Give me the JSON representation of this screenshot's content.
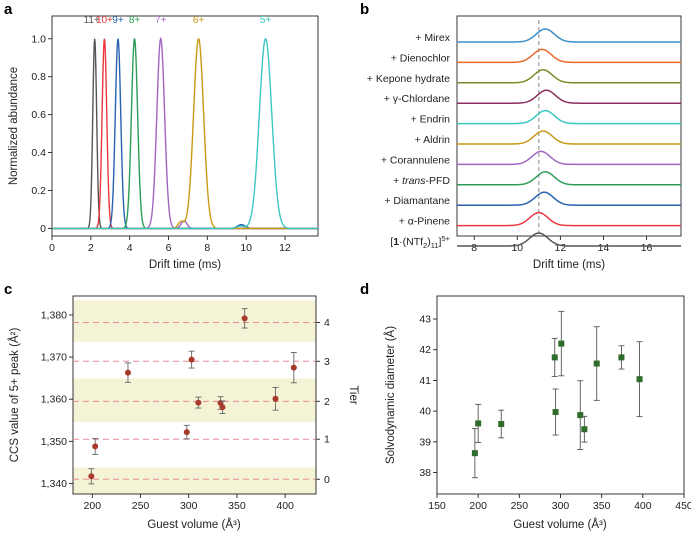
{
  "panel_letters": [
    "a",
    "b",
    "c",
    "d"
  ],
  "chart_data": [
    {
      "panel": "a",
      "type": "line",
      "xlabel": "Drift time (ms)",
      "ylabel": "Normalized abundance",
      "xlim": [
        0,
        13.7
      ],
      "ylim": [
        -0.04,
        1.12
      ],
      "xticks": [
        "0",
        "2",
        "4",
        "6",
        "8",
        "10",
        "12"
      ],
      "yticks": [
        "0",
        "0.2",
        "0.4",
        "0.6",
        "0.8",
        "1.0"
      ],
      "series": [
        {
          "name": "11+",
          "color": "#555555",
          "peak": 2.2,
          "width": 0.1,
          "height": 1.0
        },
        {
          "name": "10+",
          "color": "#e8383d",
          "peak": 2.7,
          "width": 0.12,
          "height": 1.0
        },
        {
          "name": "9+",
          "color": "#2a62b0",
          "peak": 3.4,
          "width": 0.14,
          "height": 1.0
        },
        {
          "name": "8+",
          "color": "#2e9c57",
          "peak": 4.25,
          "width": 0.16,
          "height": 1.0
        },
        {
          "name": "7+",
          "color": "#a066c0",
          "peak": 5.6,
          "width": 0.2,
          "height": 1.0
        },
        {
          "name": "6+",
          "color": "#c89a16",
          "peak": 7.55,
          "width": 0.26,
          "height": 1.0
        },
        {
          "name": "5+",
          "color": "#3cc6c0",
          "peak": 11.0,
          "width": 0.32,
          "height": 1.0
        }
      ],
      "minor_bumps": [
        {
          "color": "#a066c0",
          "peak": 6.8,
          "width": 0.15,
          "height": 0.04
        },
        {
          "color": "#c89a16",
          "peak": 6.65,
          "width": 0.15,
          "height": 0.035
        },
        {
          "color": "#2a62b0",
          "peak": 9.75,
          "width": 0.2,
          "height": 0.02
        },
        {
          "color": "#3cc6c0",
          "peak": 9.7,
          "width": 0.2,
          "height": 0.012
        }
      ]
    },
    {
      "panel": "b",
      "type": "line",
      "xlabel": "Drift time (ms)",
      "xlim": [
        7.2,
        17.6
      ],
      "xticks": [
        "8",
        "10",
        "12",
        "14",
        "16"
      ],
      "reference_line_x": 11.0,
      "series": [
        {
          "name": "+ Mirex",
          "color": "#3a8fc8",
          "peak": 11.3
        },
        {
          "name": "+ Dienochlor",
          "color": "#e8692a",
          "peak": 11.15
        },
        {
          "name": "+ Kepone hydrate",
          "color": "#7f8a2a",
          "peak": 11.2
        },
        {
          "name": "+ γ-Chlordane",
          "color": "#8b2f5e",
          "peak": 11.35
        },
        {
          "name": "+ Endrin",
          "color": "#3cc6c0",
          "peak": 11.3
        },
        {
          "name": "+ Aldrin",
          "color": "#c89a16",
          "peak": 11.2
        },
        {
          "name": "+ Corannulene",
          "color": "#a066c0",
          "peak": 11.1
        },
        {
          "name_prefix": "+ ",
          "name_italic": "trans",
          "name_suffix": "-PFD",
          "color": "#2e9c57",
          "peak": 11.3
        },
        {
          "name": "+ Diamantane",
          "color": "#2a62b0",
          "peak": 11.25
        },
        {
          "name": "+ α-Pinene",
          "color": "#e8383d",
          "peak": 11.0
        },
        {
          "name_rich": [
            "[",
            "1",
            "·(NTf",
            "2",
            ")",
            "11",
            "]",
            "5+"
          ],
          "color": "#555555",
          "peak": 11.0
        }
      ]
    },
    {
      "panel": "c",
      "type": "scatter",
      "xlabel": "Guest volume (Å³)",
      "ylabel": "CCS value of 5+ peak (Å²)",
      "ylabel_right": "Tier",
      "xlim": [
        180,
        432
      ],
      "ylim": [
        1337.5,
        1384.5
      ],
      "xticks": [
        "200",
        "250",
        "300",
        "350",
        "400"
      ],
      "yticks": [
        "1,340",
        "1,350",
        "1,360",
        "1,370",
        "1,380"
      ],
      "tiers": [
        {
          "label": "0",
          "value": 1341,
          "band": [
            1336.5,
            1343.8
          ],
          "shaded": true
        },
        {
          "label": "1",
          "value": 1350.5,
          "shaded": false
        },
        {
          "label": "2",
          "value": 1359.5,
          "band": [
            1354.6,
            1364.9
          ],
          "shaded": true
        },
        {
          "label": "3",
          "value": 1369,
          "shaded": false
        },
        {
          "label": "4",
          "value": 1378.2,
          "band": [
            1373.6,
            1383.5
          ],
          "shaded": true
        }
      ],
      "points": [
        {
          "x": 199,
          "y": 1341.7,
          "err": 1.8
        },
        {
          "x": 203,
          "y": 1348.8,
          "err": 1.9
        },
        {
          "x": 237,
          "y": 1366.3,
          "err": 2.3
        },
        {
          "x": 298,
          "y": 1352.2,
          "err": 1.6
        },
        {
          "x": 303,
          "y": 1369.4,
          "err": 2.0
        },
        {
          "x": 310,
          "y": 1359.2,
          "err": 1.3
        },
        {
          "x": 333,
          "y": 1359.1,
          "err": 1.5
        },
        {
          "x": 335,
          "y": 1358.1,
          "err": 1.5
        },
        {
          "x": 358,
          "y": 1379.2,
          "err": 2.3
        },
        {
          "x": 390,
          "y": 1360.1,
          "err": 2.7
        },
        {
          "x": 409,
          "y": 1367.5,
          "err": 3.6
        }
      ]
    },
    {
      "panel": "d",
      "type": "scatter",
      "xlabel": "Guest volume (Å³)",
      "ylabel": "Solvodynamic diameter (Å)",
      "xlim": [
        150,
        450
      ],
      "ylim": [
        37.3,
        43.75
      ],
      "xticks": [
        "150",
        "200",
        "250",
        "300",
        "350",
        "400",
        "450"
      ],
      "yticks": [
        "38",
        "39",
        "40",
        "41",
        "42",
        "43"
      ],
      "points": [
        {
          "x": 196,
          "y": 38.63,
          "err": 0.8
        },
        {
          "x": 200,
          "y": 39.6,
          "err": 0.62
        },
        {
          "x": 228,
          "y": 39.58,
          "err": 0.45
        },
        {
          "x": 293,
          "y": 41.75,
          "err": 0.62
        },
        {
          "x": 294,
          "y": 39.97,
          "err": 0.75
        },
        {
          "x": 301,
          "y": 42.2,
          "err": 1.05
        },
        {
          "x": 324,
          "y": 39.87,
          "err": 1.12
        },
        {
          "x": 329,
          "y": 39.41,
          "err": 0.42
        },
        {
          "x": 344,
          "y": 41.55,
          "err": 1.2
        },
        {
          "x": 374,
          "y": 41.75,
          "err": 0.38
        },
        {
          "x": 396,
          "y": 41.04,
          "err": 1.22
        }
      ]
    }
  ]
}
